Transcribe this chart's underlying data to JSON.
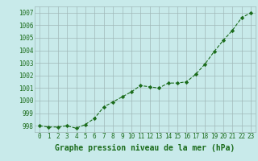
{
  "x": [
    0,
    1,
    2,
    3,
    4,
    5,
    6,
    7,
    8,
    9,
    10,
    11,
    12,
    13,
    14,
    15,
    16,
    17,
    18,
    19,
    20,
    21,
    22,
    23
  ],
  "y": [
    998.0,
    997.9,
    997.9,
    998.0,
    997.8,
    998.1,
    998.6,
    999.5,
    999.9,
    1000.3,
    1000.7,
    1001.2,
    1001.1,
    1001.0,
    1001.4,
    1001.4,
    1001.5,
    1002.1,
    1002.9,
    1003.9,
    1004.8,
    1005.6,
    1006.6,
    1007.0
  ],
  "line_color": "#1a6b1a",
  "marker": "D",
  "markersize": 2.2,
  "linewidth": 0.8,
  "linestyle": "--",
  "background_color": "#c8eaea",
  "grid_color": "#a0b8b8",
  "xlabel": "Graphe pression niveau de la mer (hPa)",
  "xlabel_fontsize": 7,
  "tick_fontsize": 5.5,
  "ylim": [
    997.5,
    1007.5
  ],
  "yticks": [
    998,
    999,
    1000,
    1001,
    1002,
    1003,
    1004,
    1005,
    1006,
    1007
  ],
  "xlim": [
    -0.5,
    23.5
  ],
  "xticks": [
    0,
    1,
    2,
    3,
    4,
    5,
    6,
    7,
    8,
    9,
    10,
    11,
    12,
    13,
    14,
    15,
    16,
    17,
    18,
    19,
    20,
    21,
    22,
    23
  ]
}
